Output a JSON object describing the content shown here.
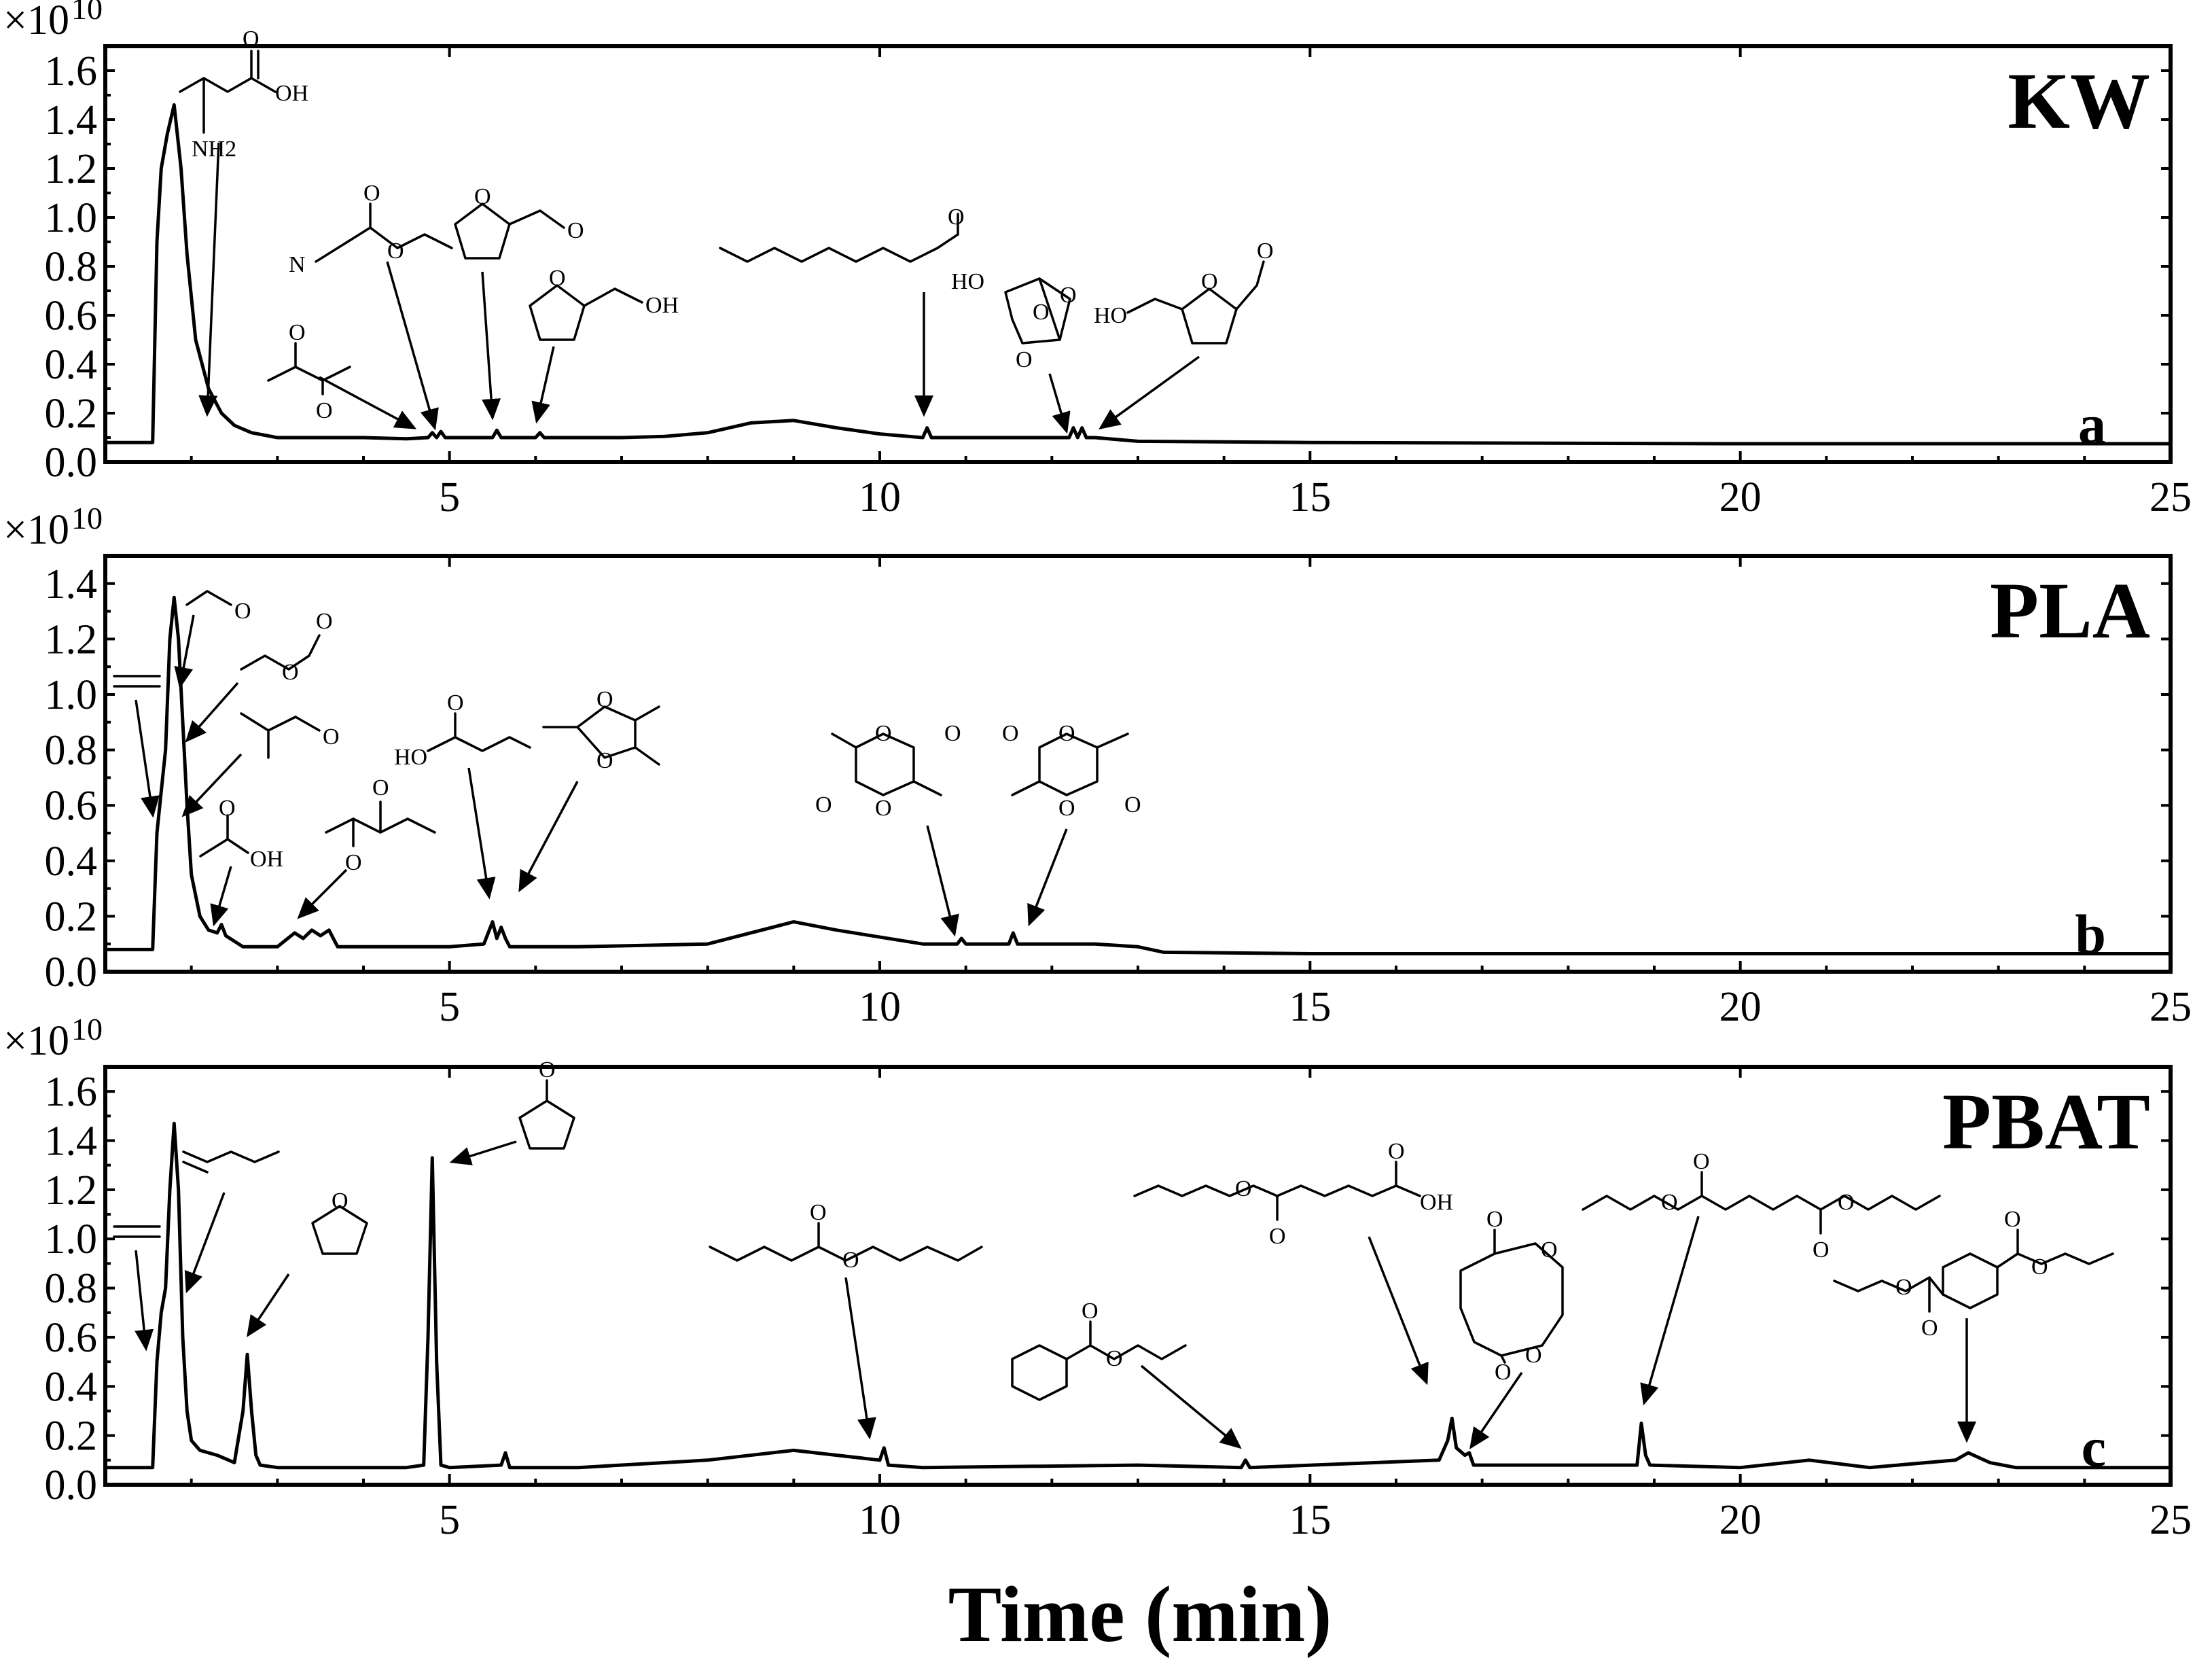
{
  "chart_data": [
    {
      "type": "line",
      "panel_name": "KW",
      "panel_letter": "a",
      "exponent_label": "×10",
      "exponent_power": "10",
      "xlim": [
        1,
        25
      ],
      "ylim": [
        0,
        1.7
      ],
      "xticks": [
        5,
        10,
        15,
        20,
        25
      ],
      "xtick_labels": [
        "5",
        "10",
        "15",
        "20",
        "25"
      ],
      "yticks": [
        0.0,
        0.2,
        0.4,
        0.6,
        0.8,
        1.0,
        1.2,
        1.4,
        1.6
      ],
      "ytick_labels": [
        "0.0",
        "0.2",
        "0.4",
        "0.6",
        "0.8",
        "1.0",
        "1.2",
        "1.4",
        "1.6"
      ],
      "baseline": 0.08,
      "series": [
        {
          "name": "KW",
          "x": [
            1.0,
            1.55,
            1.6,
            1.65,
            1.72,
            1.8,
            1.88,
            1.95,
            2.05,
            2.2,
            2.35,
            2.5,
            2.7,
            3.0,
            3.5,
            4.0,
            4.5,
            4.75,
            4.8,
            4.85,
            4.9,
            4.95,
            5.0,
            5.5,
            5.55,
            5.6,
            5.65,
            6.0,
            6.05,
            6.1,
            7.0,
            7.5,
            8.0,
            8.5,
            9.0,
            9.5,
            10.0,
            10.5,
            10.55,
            10.6,
            10.65,
            11.0,
            12.0,
            12.2,
            12.25,
            12.3,
            12.35,
            12.4,
            12.45,
            12.5,
            13.0,
            15.0,
            20.0,
            25.0
          ],
          "y": [
            0.08,
            0.08,
            0.9,
            1.2,
            1.34,
            1.46,
            1.2,
            0.85,
            0.5,
            0.3,
            0.2,
            0.15,
            0.12,
            0.1,
            0.1,
            0.1,
            0.095,
            0.1,
            0.12,
            0.1,
            0.125,
            0.1,
            0.1,
            0.1,
            0.13,
            0.1,
            0.1,
            0.1,
            0.12,
            0.1,
            0.1,
            0.105,
            0.12,
            0.16,
            0.17,
            0.14,
            0.115,
            0.1,
            0.14,
            0.1,
            0.1,
            0.1,
            0.1,
            0.1,
            0.14,
            0.1,
            0.14,
            0.1,
            0.1,
            0.1,
            0.085,
            0.08,
            0.075,
            0.075
          ]
        }
      ],
      "structures": [
        {
          "name": "alanine",
          "labels": [
            "O",
            "OH",
            "NH2"
          ],
          "peak_time": 2.2
        },
        {
          "name": "2,3-butanedione",
          "labels": [
            "O",
            "O"
          ],
          "peak_time": 4.75
        },
        {
          "name": "ethyl cyanoformate",
          "labels": [
            "O",
            "N",
            "O"
          ],
          "peak_time": 4.95
        },
        {
          "name": "furfural",
          "labels": [
            "O",
            "O"
          ],
          "peak_time": 5.55
        },
        {
          "name": "furfuryl alcohol",
          "labels": [
            "O",
            "OH"
          ],
          "peak_time": 6.05
        },
        {
          "name": "decanal",
          "labels": [
            "O"
          ],
          "peak_time": 10.55
        },
        {
          "name": "levoglucosenone-like anhydrosugar",
          "labels": [
            "HO",
            "O",
            "O",
            "O"
          ],
          "peak_time": 12.25
        },
        {
          "name": "5-hydroxymethylfurfural",
          "labels": [
            "HO",
            "O",
            "O"
          ],
          "peak_time": 12.35
        }
      ]
    },
    {
      "type": "line",
      "panel_name": "PLA",
      "panel_letter": "b",
      "exponent_label": "×10",
      "exponent_power": "10",
      "xlim": [
        1,
        25
      ],
      "ylim": [
        0,
        1.5
      ],
      "xticks": [
        5,
        10,
        15,
        20,
        25
      ],
      "xtick_labels": [
        "5",
        "10",
        "15",
        "20",
        "25"
      ],
      "yticks": [
        0.0,
        0.2,
        0.4,
        0.6,
        0.8,
        1.0,
        1.2,
        1.4
      ],
      "ytick_labels": [
        "0.0",
        "0.2",
        "0.4",
        "0.6",
        "0.8",
        "1.0",
        "1.2",
        "1.4"
      ],
      "baseline": 0.08,
      "series": [
        {
          "name": "PLA",
          "x": [
            1.0,
            1.55,
            1.6,
            1.65,
            1.7,
            1.75,
            1.8,
            1.85,
            1.9,
            1.95,
            2.0,
            2.1,
            2.2,
            2.3,
            2.35,
            2.4,
            2.6,
            3.0,
            3.2,
            3.3,
            3.4,
            3.5,
            3.6,
            3.7,
            5.0,
            5.4,
            5.5,
            5.55,
            5.6,
            5.65,
            5.7,
            5.8,
            6.5,
            8.0,
            9.0,
            9.5,
            10.5,
            10.9,
            10.95,
            11.0,
            11.5,
            11.55,
            11.6,
            12.5,
            13.0,
            13.3,
            15.0,
            20.0,
            25.0
          ],
          "y": [
            0.08,
            0.08,
            0.5,
            0.65,
            0.8,
            1.2,
            1.35,
            1.2,
            0.9,
            0.6,
            0.35,
            0.2,
            0.15,
            0.14,
            0.17,
            0.13,
            0.09,
            0.09,
            0.14,
            0.12,
            0.15,
            0.13,
            0.15,
            0.09,
            0.09,
            0.1,
            0.18,
            0.12,
            0.16,
            0.12,
            0.09,
            0.09,
            0.09,
            0.1,
            0.18,
            0.15,
            0.1,
            0.1,
            0.12,
            0.1,
            0.1,
            0.14,
            0.1,
            0.1,
            0.09,
            0.07,
            0.065,
            0.065,
            0.065
          ]
        }
      ],
      "structures": [
        {
          "name": "ethylene",
          "labels": [],
          "peak_time": 1.6
        },
        {
          "name": "acetaldehyde",
          "labels": [
            "O"
          ],
          "peak_time": 1.75
        },
        {
          "name": "vinyl formate",
          "labels": [
            "O",
            "O"
          ],
          "peak_time": 1.8
        },
        {
          "name": "isobutyraldehyde",
          "labels": [
            "O"
          ],
          "peak_time": 1.85
        },
        {
          "name": "acetic acid",
          "labels": [
            "O",
            "OH"
          ],
          "peak_time": 2.35
        },
        {
          "name": "2,3-pentanedione",
          "labels": [
            "O",
            "O"
          ],
          "peak_time": 3.3
        },
        {
          "name": "acrylic acid",
          "labels": [
            "O",
            "HO"
          ],
          "peak_time": 5.5
        },
        {
          "name": "2,4,5-trimethyl-1,3-dioxolane",
          "labels": [
            "O",
            "O"
          ],
          "peak_time": 5.65
        },
        {
          "name": "meso-lactide",
          "labels": [
            "O",
            "O",
            "O",
            "O"
          ],
          "peak_time": 10.95
        },
        {
          "name": "L-lactide",
          "labels": [
            "O",
            "O",
            "O",
            "O"
          ],
          "peak_time": 11.55
        }
      ]
    },
    {
      "type": "line",
      "panel_name": "PBAT",
      "panel_letter": "c",
      "exponent_label": "×10",
      "exponent_power": "10",
      "xlim": [
        1,
        25
      ],
      "ylim": [
        0,
        1.7
      ],
      "xticks": [
        5,
        10,
        15,
        20,
        25
      ],
      "xtick_labels": [
        "5",
        "10",
        "15",
        "20",
        "25"
      ],
      "yticks": [
        0.0,
        0.2,
        0.4,
        0.6,
        0.8,
        1.0,
        1.2,
        1.4,
        1.6
      ],
      "ytick_labels": [
        "0.0",
        "0.2",
        "0.4",
        "0.6",
        "0.8",
        "1.0",
        "1.2",
        "1.4",
        "1.6"
      ],
      "baseline": 0.07,
      "series": [
        {
          "name": "PBAT",
          "x": [
            1.0,
            1.55,
            1.6,
            1.65,
            1.7,
            1.75,
            1.8,
            1.85,
            1.9,
            1.95,
            2.0,
            2.1,
            2.3,
            2.5,
            2.6,
            2.65,
            2.7,
            2.75,
            2.8,
            3.0,
            4.5,
            4.7,
            4.75,
            4.8,
            4.85,
            4.9,
            5.0,
            5.6,
            5.65,
            5.7,
            6.5,
            8.0,
            9.0,
            10.0,
            10.05,
            10.1,
            10.5,
            13.0,
            14.2,
            14.25,
            14.3,
            16.5,
            16.6,
            16.65,
            16.7,
            16.8,
            16.85,
            16.9,
            18.8,
            18.85,
            18.9,
            18.95,
            20.0,
            20.8,
            21.5,
            22.5,
            22.65,
            22.9,
            23.2,
            25.0
          ],
          "y": [
            0.07,
            0.07,
            0.5,
            0.7,
            0.8,
            1.2,
            1.47,
            1.2,
            0.6,
            0.3,
            0.18,
            0.14,
            0.12,
            0.09,
            0.3,
            0.53,
            0.3,
            0.12,
            0.08,
            0.07,
            0.07,
            0.08,
            0.6,
            1.33,
            0.5,
            0.08,
            0.07,
            0.08,
            0.13,
            0.07,
            0.07,
            0.1,
            0.14,
            0.1,
            0.15,
            0.08,
            0.07,
            0.08,
            0.07,
            0.1,
            0.07,
            0.1,
            0.18,
            0.27,
            0.15,
            0.12,
            0.13,
            0.08,
            0.08,
            0.25,
            0.12,
            0.08,
            0.07,
            0.1,
            0.07,
            0.1,
            0.13,
            0.09,
            0.07,
            0.07
          ]
        }
      ],
      "structures": [
        {
          "name": "ethylene",
          "labels": [],
          "peak_time": 1.65
        },
        {
          "name": "1,3-butadiene",
          "labels": [],
          "peak_time": 1.8
        },
        {
          "name": "tetrahydrofuran",
          "labels": [
            "O"
          ],
          "peak_time": 2.65
        },
        {
          "name": "cyclopentanone",
          "labels": [
            "O"
          ],
          "peak_time": 4.8
        },
        {
          "name": "but-3-enyl pentanoate",
          "labels": [
            "O",
            "O"
          ],
          "peak_time": 10.05
        },
        {
          "name": "but-3-enyl benzoate",
          "labels": [
            "O",
            "O"
          ],
          "peak_time": 14.25
        },
        {
          "name": "mono(but-3-enyl) adipate",
          "labels": [
            "O",
            "O",
            "O",
            "OH"
          ],
          "peak_time": 16.65
        },
        {
          "name": "cyclic butylene adipate",
          "labels": [
            "O",
            "O",
            "O",
            "O"
          ],
          "peak_time": 16.85
        },
        {
          "name": "di(but-3-enyl) adipate",
          "labels": [
            "O",
            "O",
            "O",
            "O"
          ],
          "peak_time": 18.85
        },
        {
          "name": "di(but-3-enyl) terephthalate",
          "labels": [
            "O",
            "O",
            "O",
            "O"
          ],
          "peak_time": 22.65
        }
      ]
    }
  ],
  "xaxis_title": "Time (min)"
}
